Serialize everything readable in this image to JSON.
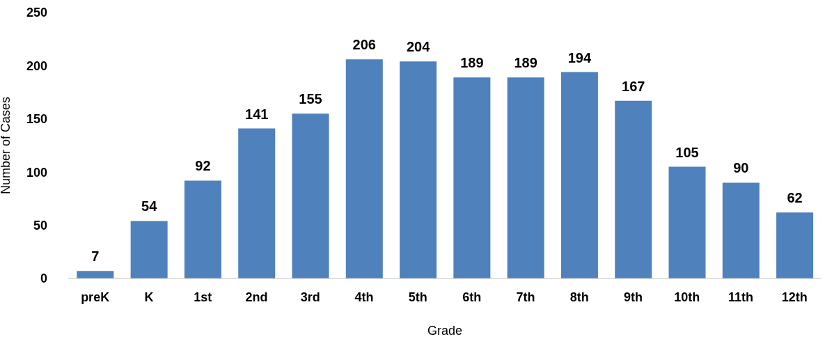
{
  "chart_data": {
    "type": "bar",
    "xlabel": "Grade",
    "ylabel": "Number of Cases",
    "categories": [
      "preK",
      "K",
      "1st",
      "2nd",
      "3rd",
      "4th",
      "5th",
      "6th",
      "7th",
      "8th",
      "9th",
      "10th",
      "11th",
      "12th"
    ],
    "values": [
      7,
      54,
      92,
      141,
      155,
      206,
      204,
      189,
      189,
      194,
      167,
      105,
      90,
      62
    ],
    "color": "#4f81bd",
    "ylim": [
      0,
      250
    ],
    "yticks": [
      0,
      50,
      100,
      150,
      200,
      250
    ],
    "data_labels": true
  }
}
